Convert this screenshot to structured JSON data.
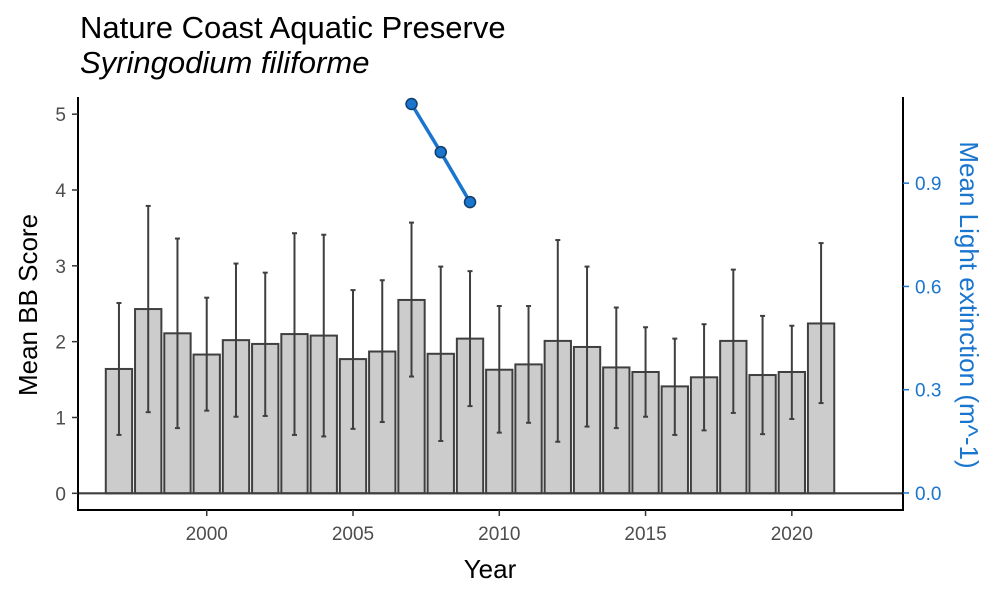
{
  "title": "Nature Coast Aquatic Preserve",
  "subtitle": "Syringodium filiforme",
  "colors": {
    "bar_fill": "#cccccc",
    "bar_stroke": "#3f3f3f",
    "errorbar": "#3f3f3f",
    "line": "#1a75cf",
    "point_fill": "#1a75cf",
    "point_stroke": "#123d6b",
    "secondary_axis": "#1a75cf"
  },
  "chart_data": {
    "type": "bar",
    "xlabel": "Year",
    "ylabel": "Mean BB Score",
    "y2label": "Mean Light extinction (m^-1)",
    "xlim": [
      1995.6,
      2023.8
    ],
    "ylim": [
      -0.22,
      5.2
    ],
    "y2lim": [
      -0.0495,
      1.1445
    ],
    "x_ticks": [
      2000,
      2005,
      2010,
      2015,
      2020
    ],
    "y_ticks": [
      0,
      1,
      2,
      3,
      4,
      5
    ],
    "y2_ticks": [
      0.0,
      0.3,
      0.6,
      0.9
    ],
    "y2_tick_labels": [
      "0.0",
      "0.3",
      "0.6",
      "0.9"
    ],
    "grid": false,
    "series": [
      {
        "name": "Mean BB Score",
        "type": "bar",
        "x": [
          1997,
          1998,
          1999,
          2000,
          2001,
          2002,
          2003,
          2004,
          2005,
          2006,
          2007,
          2008,
          2009,
          2010,
          2011,
          2012,
          2013,
          2014,
          2015,
          2016,
          2017,
          2018,
          2019,
          2020,
          2021
        ],
        "values": [
          1.64,
          2.43,
          2.11,
          1.83,
          2.02,
          1.97,
          2.1,
          2.08,
          1.77,
          1.87,
          2.55,
          1.84,
          2.04,
          1.63,
          1.7,
          2.01,
          1.93,
          1.66,
          1.6,
          1.41,
          1.53,
          2.01,
          1.56,
          1.6,
          2.24
        ],
        "err_lower": [
          0.77,
          1.07,
          0.86,
          1.09,
          1.01,
          1.02,
          0.77,
          0.75,
          0.85,
          0.94,
          1.54,
          0.69,
          1.15,
          0.8,
          0.93,
          0.68,
          0.88,
          0.86,
          1.01,
          0.77,
          0.83,
          1.06,
          0.78,
          0.98,
          1.19
        ],
        "err_upper": [
          2.51,
          3.79,
          3.36,
          2.58,
          3.03,
          2.91,
          3.43,
          3.41,
          2.68,
          2.81,
          3.57,
          2.99,
          2.93,
          2.47,
          2.47,
          3.34,
          2.99,
          2.45,
          2.19,
          2.04,
          2.23,
          2.95,
          2.34,
          2.21,
          3.3
        ]
      },
      {
        "name": "Mean Light extinction (m^-1)",
        "type": "line",
        "axis": "right",
        "x": [
          2007,
          2008,
          2009
        ],
        "values": [
          1.13,
          0.99,
          0.845
        ]
      }
    ]
  }
}
